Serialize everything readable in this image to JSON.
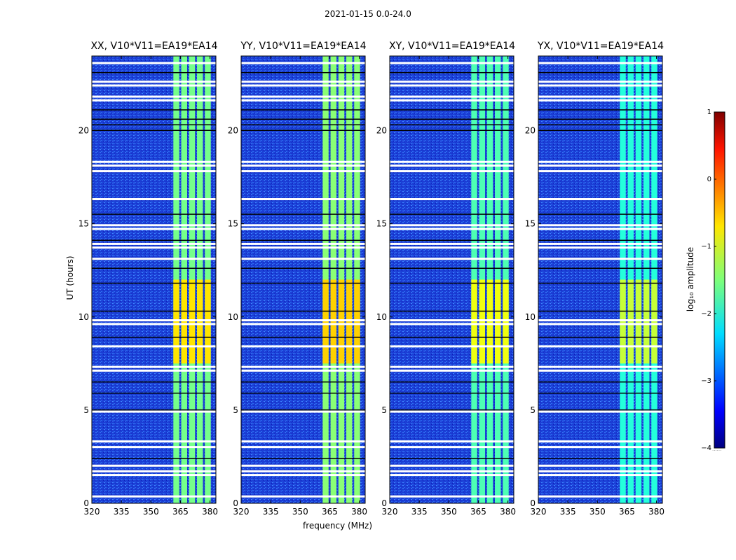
{
  "figure_title": "2021-01-15 0.0-24.0",
  "chart_data": {
    "type": "heatmap",
    "panels": [
      {
        "title": "XX, V10*V11=EA19*EA14",
        "polarization": "XX"
      },
      {
        "title": "YY, V10*V11=EA19*EA14",
        "polarization": "YY"
      },
      {
        "title": "XY, V10*V11=EA19*EA14",
        "polarization": "XY"
      },
      {
        "title": "YX, V10*V11=EA19*EA14",
        "polarization": "YX"
      }
    ],
    "xlabel": "frequency (MHz)",
    "ylabel": "UT (hours)",
    "xlim": [
      320,
      383
    ],
    "ylim": [
      0,
      24
    ],
    "xticks": [
      320,
      335,
      350,
      365,
      380
    ],
    "yticks": [
      0,
      5,
      10,
      15,
      20
    ],
    "colorbar": {
      "label": "log₁₀ amplitude",
      "range": [
        -4,
        1
      ],
      "ticks": [
        1,
        0,
        -1,
        -2,
        -3,
        -4
      ],
      "colormap": "jet",
      "footer": "......"
    },
    "background_level": -2.7,
    "signal_band_mhz": [
      361,
      381
    ],
    "signal_levels": {
      "XX": -1.2,
      "YY": -1.1,
      "XY": -1.4,
      "YX": -1.6
    },
    "bright_interval_hours": [
      7.5,
      12.0
    ],
    "blank_rows_hours": [
      0.35,
      1.5,
      1.7,
      2.0,
      3.0,
      3.3,
      4.9,
      7.1,
      7.3,
      8.4,
      9.6,
      9.8,
      13.1,
      13.7,
      13.9,
      14.7,
      14.9,
      16.3,
      17.8,
      18.1,
      18.3,
      21.6,
      21.8,
      22.4,
      22.6,
      23.6
    ],
    "dark_rows_hours": [
      2.4,
      5.0,
      5.9,
      6.5,
      8.9,
      10.3,
      11.8,
      12.6,
      14.1,
      15.5,
      20.0,
      20.3,
      20.6,
      21.1,
      23.1
    ]
  }
}
